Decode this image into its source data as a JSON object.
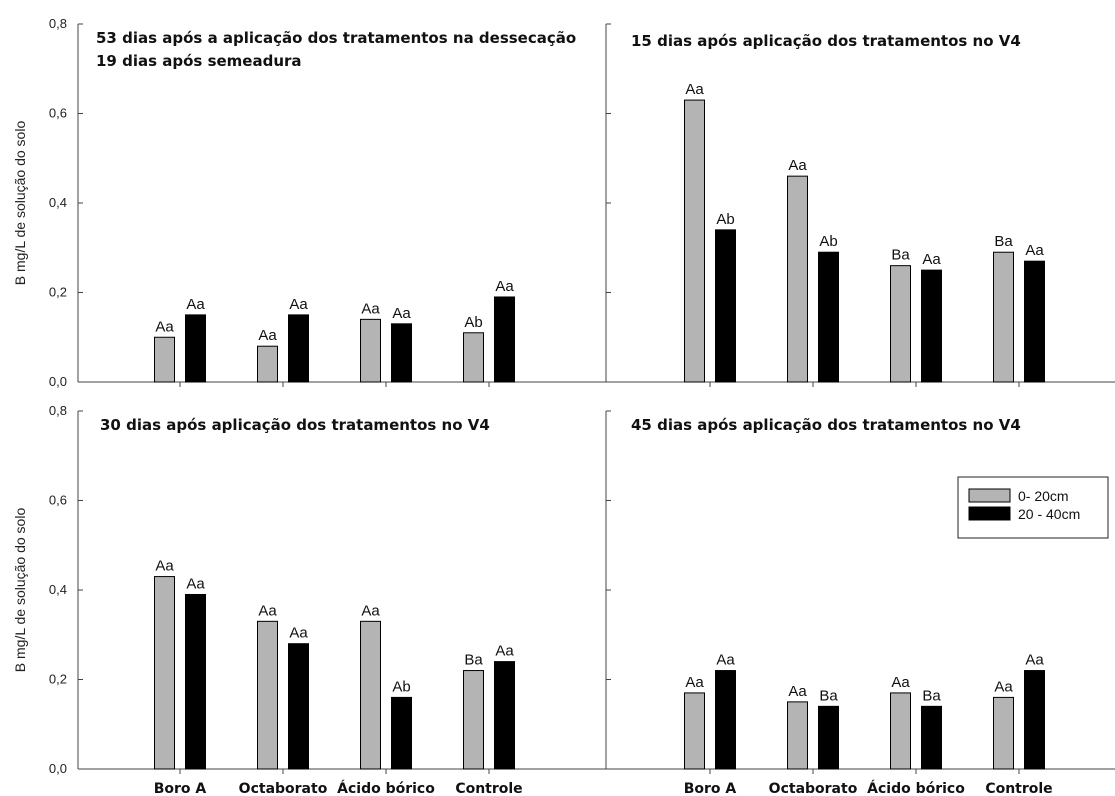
{
  "colors": {
    "bar_0_20": "#b4b4b4",
    "bar_20_40": "#000000",
    "axis": "#444444"
  },
  "legend": {
    "position": "right, bottom-right panel",
    "entries": [
      {
        "label": "0- 20cm",
        "color": "#b4b4b4"
      },
      {
        "label": "20 - 40cm",
        "color": "#000000"
      }
    ]
  },
  "ylabel": "B mg/L de solução do solo",
  "categories": [
    "Boro A",
    "Octaborato",
    "Ácido bórico",
    "Controle"
  ],
  "y_ticks": [
    "0,0",
    "0,2",
    "0,4",
    "0,6",
    "0,8"
  ],
  "chart_data": [
    {
      "type": "bar",
      "panel": "top-left",
      "title": [
        "53 dias após a aplicação dos tratamentos na dessecação",
        "19 dias após semeadura"
      ],
      "categories": [
        "Boro A",
        "Octaborato",
        "Ácido bórico",
        "Controle"
      ],
      "ylim": [
        0,
        0.8
      ],
      "series": [
        {
          "name": "0- 20cm",
          "values": [
            0.1,
            0.08,
            0.14,
            0.11
          ],
          "labels": [
            "Aa",
            "Aa",
            "Aa",
            "Ab"
          ]
        },
        {
          "name": "20 - 40cm",
          "values": [
            0.15,
            0.15,
            0.13,
            0.19
          ],
          "labels": [
            "Aa",
            "Aa",
            "Aa",
            "Aa"
          ]
        }
      ]
    },
    {
      "type": "bar",
      "panel": "top-right",
      "title": [
        "15 dias após aplicação dos tratamentos no V4"
      ],
      "categories": [
        "Boro A",
        "Octaborato",
        "Ácido bórico",
        "Controle"
      ],
      "ylim": [
        0,
        0.8
      ],
      "series": [
        {
          "name": "0- 20cm",
          "values": [
            0.63,
            0.46,
            0.26,
            0.29
          ],
          "labels": [
            "Aa",
            "Aa",
            "Ba",
            "Ba"
          ]
        },
        {
          "name": "20 - 40cm",
          "values": [
            0.34,
            0.29,
            0.25,
            0.27
          ],
          "labels": [
            "Ab",
            "Ab",
            "Aa",
            "Aa"
          ]
        }
      ]
    },
    {
      "type": "bar",
      "panel": "bottom-left",
      "title": [
        "30 dias após aplicação dos tratamentos no V4"
      ],
      "categories": [
        "Boro A",
        "Octaborato",
        "Ácido bórico",
        "Controle"
      ],
      "ylim": [
        0,
        0.8
      ],
      "series": [
        {
          "name": "0- 20cm",
          "values": [
            0.43,
            0.33,
            0.33,
            0.22
          ],
          "labels": [
            "Aa",
            "Aa",
            "Aa",
            "Ba"
          ]
        },
        {
          "name": "20 - 40cm",
          "values": [
            0.39,
            0.28,
            0.16,
            0.24
          ],
          "labels": [
            "Aa",
            "Aa",
            "Ab",
            "Aa"
          ]
        }
      ]
    },
    {
      "type": "bar",
      "panel": "bottom-right",
      "title": [
        "45 dias após aplicação dos tratamentos no V4"
      ],
      "categories": [
        "Boro A",
        "Octaborato",
        "Ácido bórico",
        "Controle"
      ],
      "ylim": [
        0,
        0.8
      ],
      "series": [
        {
          "name": "0- 20cm",
          "values": [
            0.17,
            0.15,
            0.17,
            0.16
          ],
          "labels": [
            "Aa",
            "Aa",
            "Aa",
            "Aa"
          ]
        },
        {
          "name": "20 - 40cm",
          "values": [
            0.22,
            0.14,
            0.14,
            0.22
          ],
          "labels": [
            "Aa",
            "Ba",
            "Ba",
            "Aa"
          ]
        }
      ]
    }
  ]
}
